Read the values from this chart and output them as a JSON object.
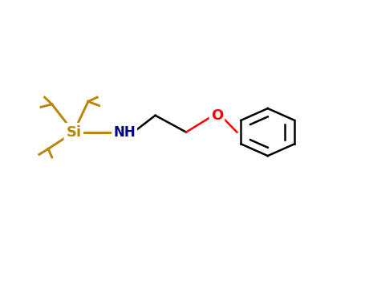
{
  "background_color": "#ffffff",
  "si_color": "#b8860b",
  "n_color": "#00008b",
  "o_color": "#ff0000",
  "bond_color": "#000000",
  "si_bond_color": "#b8860b",
  "n_bond_color": "#00008b",
  "si_label": "Si",
  "n_label": "NH",
  "o_label": "O",
  "figsize": [
    4.55,
    3.5
  ],
  "dpi": 100,
  "lw": 1.8
}
